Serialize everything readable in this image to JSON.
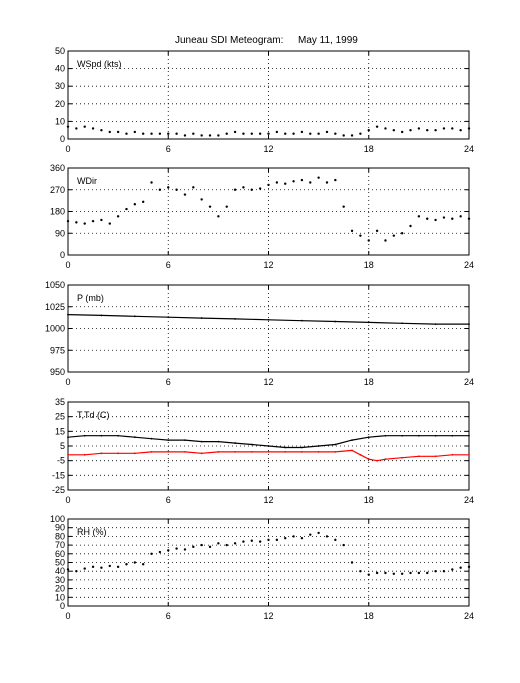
{
  "figure": {
    "title_station": "Juneau SDI Meteogram:",
    "title_date": "May 11, 1999"
  },
  "colors": {
    "frame": "#000000",
    "grid": "#000000",
    "series_black": "#000000",
    "series_red": "#ff0000"
  },
  "chart_data": [
    {
      "type": "scatter",
      "label": "WSpd (kts)",
      "xlim": [
        0,
        24
      ],
      "xticks": [
        0,
        6,
        12,
        18,
        24
      ],
      "ylim": [
        0,
        50
      ],
      "yticks": [
        0,
        10,
        20,
        30,
        40,
        50
      ],
      "grid": true,
      "series": [
        {
          "color": "#000000",
          "x": [
            0,
            0.5,
            1,
            1.5,
            2,
            2.5,
            3,
            3.5,
            4,
            4.5,
            5,
            5.5,
            6,
            6.5,
            7,
            7.5,
            8,
            8.5,
            9,
            9.5,
            10,
            10.5,
            11,
            11.5,
            12,
            12.5,
            13,
            13.5,
            14,
            14.5,
            15,
            15.5,
            16,
            16.5,
            17,
            17.5,
            18,
            18.5,
            19,
            19.5,
            20,
            20.5,
            21,
            21.5,
            22,
            22.5,
            23,
            23.5,
            24
          ],
          "y": [
            7,
            6,
            7,
            6,
            5,
            4,
            4,
            3,
            4,
            3,
            3,
            3,
            3,
            3,
            2,
            3,
            2,
            2,
            2,
            3,
            4,
            3,
            3,
            3,
            3,
            4,
            3,
            3,
            4,
            3,
            3,
            4,
            3,
            2,
            2,
            3,
            5,
            7,
            6,
            5,
            4,
            5,
            6,
            5,
            5,
            6,
            6,
            5,
            6
          ]
        }
      ]
    },
    {
      "type": "scatter",
      "label": "WDir",
      "xlim": [
        0,
        24
      ],
      "xticks": [
        0,
        6,
        12,
        18,
        24
      ],
      "ylim": [
        0,
        360
      ],
      "yticks": [
        0,
        90,
        180,
        270,
        360
      ],
      "grid": true,
      "series": [
        {
          "color": "#000000",
          "x": [
            0,
            0.5,
            1,
            1.5,
            2,
            2.5,
            3,
            3.5,
            4,
            4.5,
            5,
            5.5,
            6,
            6.5,
            7,
            7.5,
            8,
            8.5,
            9,
            9.5,
            10,
            10.5,
            11,
            11.5,
            12,
            12.5,
            13,
            13.5,
            14,
            14.5,
            15,
            15.5,
            16,
            16.5,
            17,
            17.5,
            18,
            18.5,
            19,
            19.5,
            20,
            20.5,
            21,
            21.5,
            22,
            22.5,
            23,
            23.5,
            24
          ],
          "y": [
            140,
            135,
            130,
            140,
            145,
            130,
            160,
            190,
            210,
            220,
            300,
            270,
            280,
            270,
            250,
            280,
            230,
            200,
            160,
            200,
            270,
            280,
            270,
            275,
            290,
            300,
            295,
            305,
            310,
            300,
            320,
            300,
            310,
            200,
            100,
            80,
            60,
            100,
            60,
            80,
            90,
            120,
            160,
            150,
            145,
            155,
            150,
            160,
            150
          ]
        }
      ]
    },
    {
      "type": "line",
      "label": "P (mb)",
      "xlim": [
        0,
        24
      ],
      "xticks": [
        0,
        6,
        12,
        18,
        24
      ],
      "ylim": [
        950,
        1050
      ],
      "yticks": [
        950,
        975,
        1000,
        1025,
        1050
      ],
      "grid": true,
      "series": [
        {
          "color": "#000000",
          "x": [
            0,
            2,
            4,
            6,
            8,
            10,
            12,
            14,
            16,
            18,
            20,
            22,
            24
          ],
          "y": [
            1016,
            1015,
            1014,
            1013,
            1012,
            1011,
            1010,
            1009,
            1008,
            1007,
            1006,
            1005,
            1005
          ]
        }
      ]
    },
    {
      "type": "line",
      "label": "T,Td (C)",
      "xlim": [
        0,
        24
      ],
      "xticks": [
        0,
        6,
        12,
        18,
        24
      ],
      "ylim": [
        -25,
        35
      ],
      "yticks": [
        -25,
        -15,
        -5,
        5,
        15,
        25,
        35
      ],
      "grid": true,
      "series": [
        {
          "color": "#000000",
          "x": [
            0,
            1,
            2,
            3,
            4,
            5,
            6,
            7,
            8,
            9,
            10,
            11,
            12,
            13,
            14,
            15,
            16,
            17,
            18,
            19,
            20,
            21,
            22,
            23,
            24
          ],
          "y": [
            11,
            12,
            12,
            12,
            11,
            10,
            9,
            9,
            8,
            8,
            7,
            6,
            5,
            4,
            4,
            5,
            6,
            9,
            11,
            12,
            12,
            12,
            12,
            12,
            12
          ]
        },
        {
          "color": "#ff0000",
          "x": [
            0,
            1,
            2,
            3,
            4,
            5,
            6,
            7,
            8,
            9,
            10,
            11,
            12,
            13,
            14,
            15,
            16,
            17,
            17.5,
            18,
            18.5,
            19,
            20,
            21,
            22,
            23,
            24
          ],
          "y": [
            -1,
            -1,
            0,
            0,
            0,
            1,
            1,
            1,
            0,
            1,
            1,
            1,
            1,
            1,
            1,
            1,
            1,
            2,
            -1,
            -4,
            -5,
            -4,
            -3,
            -2,
            -2,
            -1,
            -1
          ]
        }
      ]
    },
    {
      "type": "scatter",
      "label": "RH (%)",
      "xlim": [
        0,
        24
      ],
      "xticks": [
        0,
        6,
        12,
        18,
        24
      ],
      "ylim": [
        0,
        100
      ],
      "yticks": [
        0,
        10,
        20,
        30,
        40,
        50,
        60,
        70,
        80,
        90,
        100
      ],
      "grid": true,
      "series": [
        {
          "color": "#000000",
          "x": [
            0,
            0.5,
            1,
            1.5,
            2,
            2.5,
            3,
            3.5,
            4,
            4.5,
            5,
            5.5,
            6,
            6.5,
            7,
            7.5,
            8,
            8.5,
            9,
            9.5,
            10,
            10.5,
            11,
            11.5,
            12,
            12.5,
            13,
            13.5,
            14,
            14.5,
            15,
            15.5,
            16,
            16.5,
            17,
            17.5,
            18,
            18.5,
            19,
            19.5,
            20,
            20.5,
            21,
            21.5,
            22,
            22.5,
            23,
            23.5,
            24
          ],
          "y": [
            42,
            40,
            43,
            45,
            44,
            46,
            45,
            48,
            50,
            48,
            60,
            62,
            64,
            66,
            65,
            68,
            70,
            68,
            72,
            70,
            72,
            74,
            75,
            74,
            76,
            76,
            78,
            80,
            78,
            82,
            84,
            80,
            76,
            70,
            50,
            40,
            36,
            38,
            38,
            37,
            37,
            38,
            38,
            38,
            40,
            40,
            42,
            44,
            45
          ]
        }
      ]
    }
  ]
}
